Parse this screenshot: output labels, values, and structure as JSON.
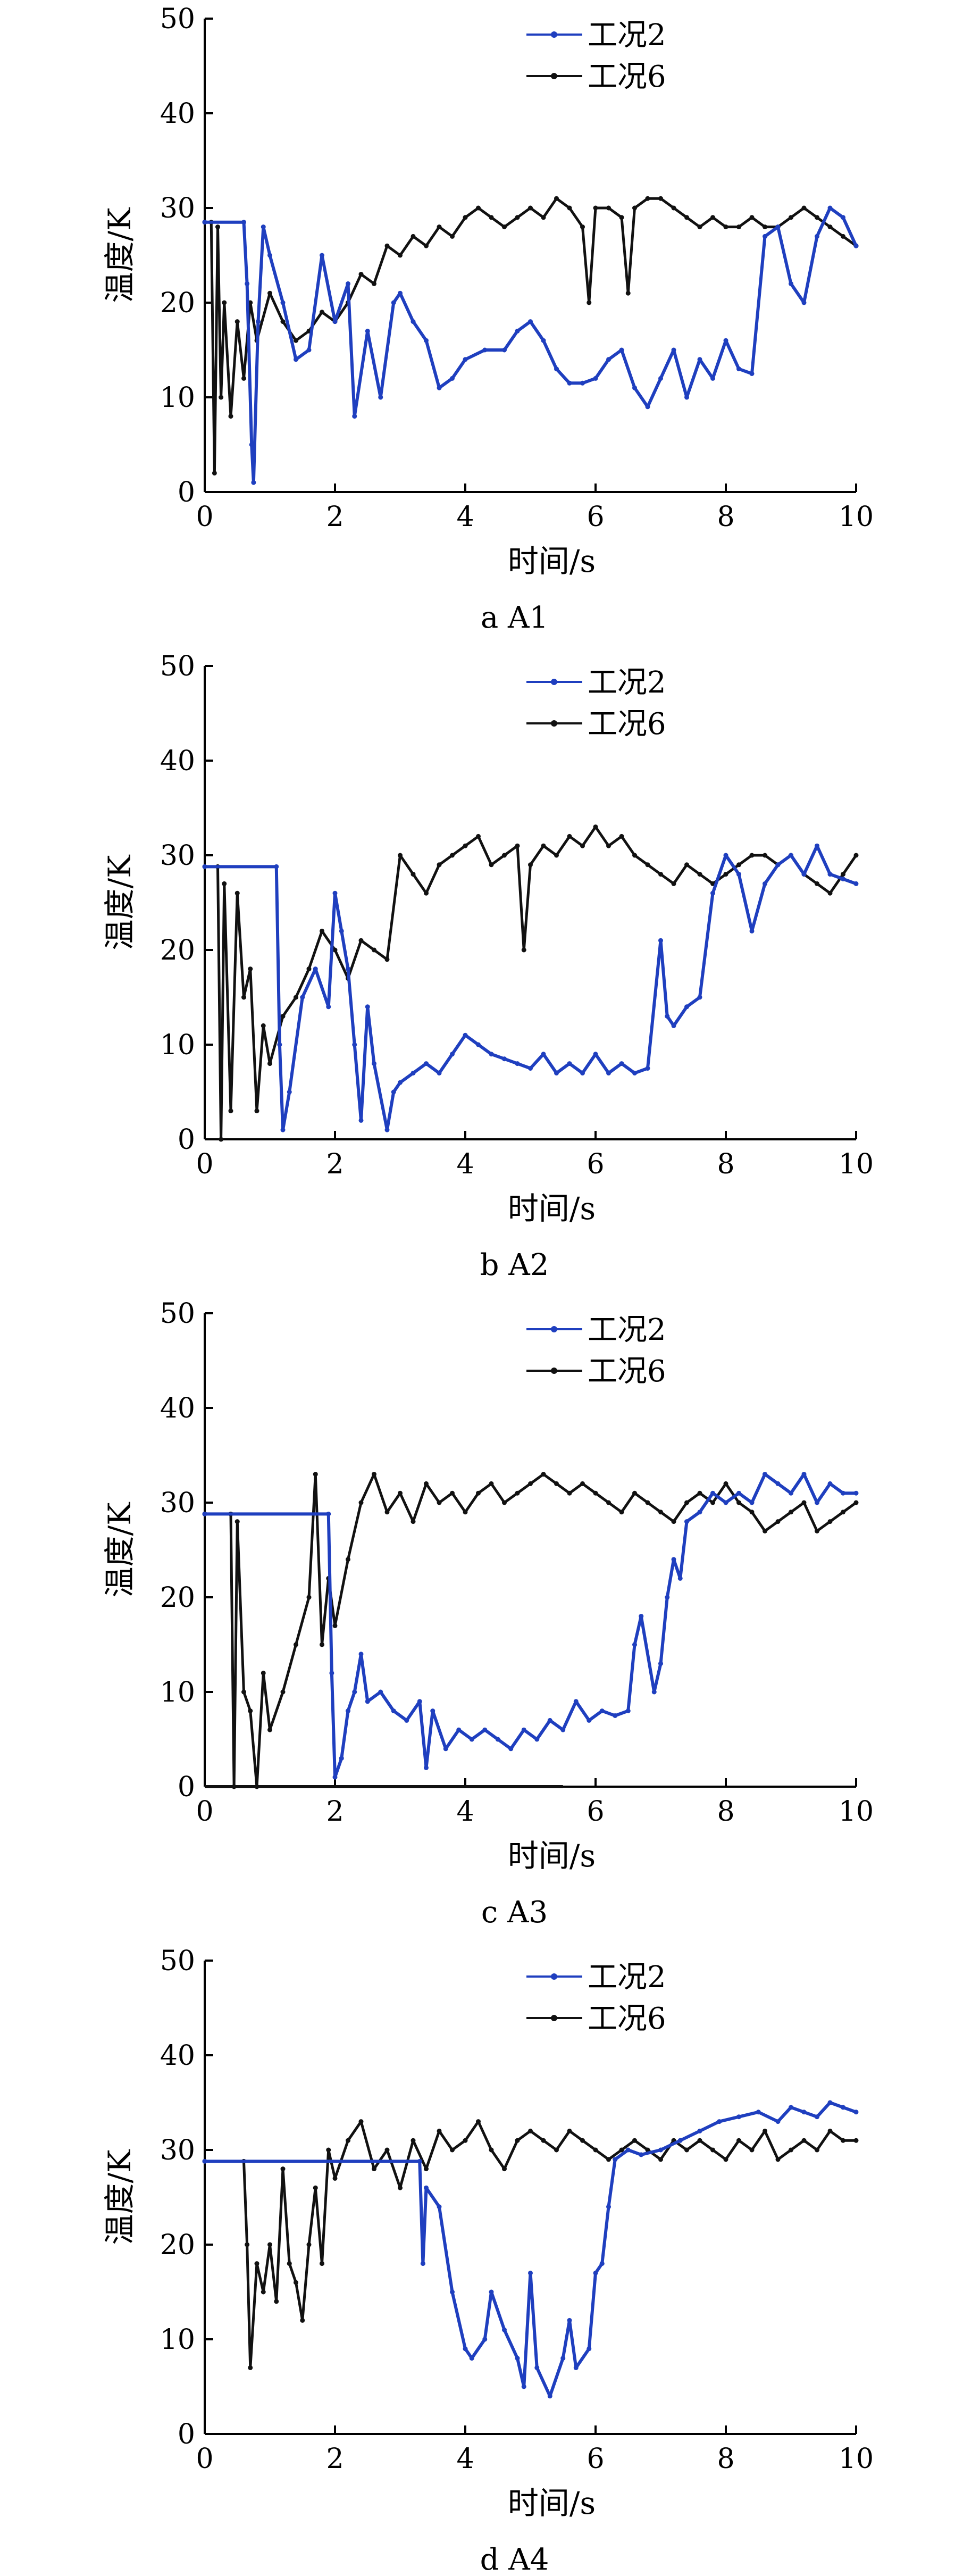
{
  "chart_data": [
    {
      "type": "line",
      "caption": "a  A1",
      "xlabel": "时间/s",
      "ylabel": "温度/K",
      "xlim": [
        0,
        10
      ],
      "ylim": [
        0,
        50
      ],
      "xticks": [
        "0",
        "2",
        "4",
        "6",
        "8",
        "10"
      ],
      "yticks": [
        "0",
        "10",
        "20",
        "30",
        "40",
        "50"
      ],
      "legend_position": "top-center",
      "series": [
        {
          "name": "工况2",
          "color": "#1f3fbf",
          "x": [
            0,
            0.6,
            0.65,
            0.72,
            0.75,
            0.82,
            0.9,
            1.0,
            1.2,
            1.4,
            1.6,
            1.8,
            2.0,
            2.2,
            2.3,
            2.5,
            2.7,
            2.9,
            3.0,
            3.2,
            3.4,
            3.6,
            3.8,
            4.0,
            4.3,
            4.6,
            4.8,
            5.0,
            5.2,
            5.4,
            5.6,
            5.8,
            6.0,
            6.2,
            6.4,
            6.6,
            6.8,
            7.0,
            7.2,
            7.4,
            7.6,
            7.8,
            8.0,
            8.2,
            8.4,
            8.6,
            8.8,
            9.0,
            9.2,
            9.4,
            9.6,
            9.8,
            10.0
          ],
          "y": [
            28.5,
            28.5,
            22,
            5,
            1,
            18,
            28,
            25,
            20,
            14,
            15,
            25,
            18,
            22,
            8,
            17,
            10,
            20,
            21,
            18,
            16,
            11,
            12,
            14,
            15,
            15,
            17,
            18,
            16,
            13,
            11.5,
            11.5,
            12,
            14,
            15,
            11,
            9,
            12,
            15,
            10,
            14,
            12,
            16,
            13,
            12.5,
            27,
            28,
            22,
            20,
            27,
            30,
            29,
            26
          ]
        },
        {
          "name": "工况6",
          "color": "#111111",
          "x": [
            0,
            0.1,
            0.15,
            0.2,
            0.25,
            0.3,
            0.4,
            0.5,
            0.6,
            0.7,
            0.8,
            1.0,
            1.2,
            1.4,
            1.6,
            1.8,
            2.0,
            2.2,
            2.4,
            2.6,
            2.8,
            3.0,
            3.2,
            3.4,
            3.6,
            3.8,
            4.0,
            4.2,
            4.4,
            4.6,
            4.8,
            5.0,
            5.2,
            5.4,
            5.6,
            5.8,
            5.9,
            6.0,
            6.2,
            6.4,
            6.5,
            6.6,
            6.8,
            7.0,
            7.2,
            7.4,
            7.6,
            7.8,
            8.0,
            8.2,
            8.4,
            8.6,
            8.8,
            9.0,
            9.2,
            9.4,
            9.6,
            9.8,
            10.0
          ],
          "y": [
            28.5,
            28.5,
            2,
            28,
            10,
            20,
            8,
            18,
            12,
            20,
            16,
            21,
            18,
            16,
            17,
            19,
            18,
            20,
            23,
            22,
            26,
            25,
            27,
            26,
            28,
            27,
            29,
            30,
            29,
            28,
            29,
            30,
            29,
            31,
            30,
            28,
            20,
            30,
            30,
            29,
            21,
            30,
            31,
            31,
            30,
            29,
            28,
            29,
            28,
            28,
            29,
            28,
            28,
            29,
            30,
            29,
            28,
            27,
            26
          ]
        }
      ]
    },
    {
      "type": "line",
      "caption": "b  A2",
      "xlabel": "时间/s",
      "ylabel": "温度/K",
      "xlim": [
        0,
        10
      ],
      "ylim": [
        0,
        50
      ],
      "xticks": [
        "0",
        "2",
        "4",
        "6",
        "8",
        "10"
      ],
      "yticks": [
        "0",
        "10",
        "20",
        "30",
        "40",
        "50"
      ],
      "legend_position": "top-center",
      "series": [
        {
          "name": "工况2",
          "color": "#1f3fbf",
          "x": [
            0,
            1.1,
            1.15,
            1.2,
            1.3,
            1.5,
            1.7,
            1.9,
            2.0,
            2.1,
            2.2,
            2.3,
            2.4,
            2.5,
            2.6,
            2.8,
            2.9,
            3.0,
            3.2,
            3.4,
            3.6,
            3.8,
            4.0,
            4.2,
            4.4,
            4.6,
            4.8,
            5.0,
            5.2,
            5.4,
            5.6,
            5.8,
            6.0,
            6.2,
            6.4,
            6.6,
            6.8,
            7.0,
            7.1,
            7.2,
            7.4,
            7.6,
            7.8,
            8.0,
            8.2,
            8.4,
            8.6,
            8.8,
            9.0,
            9.2,
            9.4,
            9.6,
            9.8,
            10.0
          ],
          "y": [
            28.8,
            28.8,
            10,
            1,
            5,
            15,
            18,
            14,
            26,
            22,
            18,
            10,
            2,
            14,
            8,
            1,
            5,
            6,
            7,
            8,
            7,
            9,
            11,
            10,
            9,
            8.5,
            8,
            7.5,
            9,
            7,
            8,
            7,
            9,
            7,
            8,
            7,
            7.5,
            21,
            13,
            12,
            14,
            15,
            26,
            30,
            28,
            22,
            27,
            29,
            30,
            28,
            31,
            28,
            27.5,
            27
          ]
        },
        {
          "name": "工况6",
          "color": "#111111",
          "x": [
            0,
            0.2,
            0.25,
            0.3,
            0.4,
            0.5,
            0.6,
            0.7,
            0.8,
            0.9,
            1.0,
            1.2,
            1.4,
            1.6,
            1.8,
            2.0,
            2.2,
            2.4,
            2.6,
            2.8,
            3.0,
            3.2,
            3.4,
            3.6,
            3.8,
            4.0,
            4.2,
            4.4,
            4.6,
            4.8,
            4.9,
            5.0,
            5.2,
            5.4,
            5.6,
            5.8,
            6.0,
            6.2,
            6.4,
            6.6,
            6.8,
            7.0,
            7.2,
            7.4,
            7.6,
            7.8,
            8.0,
            8.2,
            8.4,
            8.6,
            8.8,
            9.0,
            9.2,
            9.4,
            9.6,
            9.8,
            10.0
          ],
          "y": [
            28.8,
            28.8,
            0,
            27,
            3,
            26,
            15,
            18,
            3,
            12,
            8,
            13,
            15,
            18,
            22,
            20,
            17,
            21,
            20,
            19,
            30,
            28,
            26,
            29,
            30,
            31,
            32,
            29,
            30,
            31,
            20,
            29,
            31,
            30,
            32,
            31,
            33,
            31,
            32,
            30,
            29,
            28,
            27,
            29,
            28,
            27,
            28,
            29,
            30,
            30,
            29,
            30,
            28,
            27,
            26,
            28,
            30
          ]
        }
      ]
    },
    {
      "type": "line",
      "caption": "c  A3",
      "xlabel": "时间/s",
      "ylabel": "温度/K",
      "xlim": [
        0,
        10
      ],
      "ylim": [
        0,
        50
      ],
      "xticks": [
        "0",
        "2",
        "4",
        "6",
        "8",
        "10"
      ],
      "yticks": [
        "0",
        "10",
        "20",
        "30",
        "40",
        "50"
      ],
      "legend_position": "top-center",
      "series": [
        {
          "name": "工况2",
          "color": "#1f3fbf",
          "x": [
            0,
            1.9,
            1.95,
            2.0,
            2.1,
            2.2,
            2.3,
            2.4,
            2.5,
            2.7,
            2.9,
            3.1,
            3.3,
            3.4,
            3.5,
            3.7,
            3.9,
            4.1,
            4.3,
            4.5,
            4.7,
            4.9,
            5.1,
            5.3,
            5.5,
            5.7,
            5.9,
            6.1,
            6.3,
            6.5,
            6.6,
            6.7,
            6.9,
            7.0,
            7.1,
            7.2,
            7.3,
            7.4,
            7.6,
            7.8,
            8.0,
            8.2,
            8.4,
            8.6,
            8.8,
            9.0,
            9.2,
            9.4,
            9.6,
            9.8,
            10.0
          ],
          "y": [
            28.8,
            28.8,
            12,
            1,
            3,
            8,
            10,
            14,
            9,
            10,
            8,
            7,
            9,
            2,
            8,
            4,
            6,
            5,
            6,
            5,
            4,
            6,
            5,
            7,
            6,
            9,
            7,
            8,
            7.5,
            8,
            15,
            18,
            10,
            13,
            20,
            24,
            22,
            28,
            29,
            31,
            30,
            31,
            30,
            33,
            32,
            31,
            33,
            30,
            32,
            31,
            31
          ]
        },
        {
          "name": "工况6",
          "color": "#111111",
          "x": [
            0,
            0.4,
            0.45,
            0.5,
            0.6,
            0.7,
            0.8,
            0.9,
            1.0,
            1.2,
            1.4,
            1.6,
            1.7,
            1.8,
            1.9,
            2.0,
            2.2,
            2.4,
            2.6,
            2.8,
            3.0,
            3.2,
            3.4,
            3.6,
            3.8,
            4.0,
            4.2,
            4.4,
            4.6,
            4.8,
            5.0,
            5.2,
            5.4,
            5.6,
            5.8,
            6.0,
            6.2,
            6.4,
            6.6,
            6.8,
            7.0,
            7.2,
            7.4,
            7.6,
            7.8,
            8.0,
            8.2,
            8.4,
            8.6,
            8.8,
            9.0,
            9.2,
            9.4,
            9.6,
            9.8,
            10.0
          ],
          "y": [
            28.8,
            28.8,
            0,
            28,
            10,
            8,
            0,
            12,
            6,
            10,
            15,
            20,
            33,
            15,
            22,
            17,
            24,
            30,
            33,
            29,
            31,
            28,
            32,
            30,
            31,
            29,
            31,
            32,
            30,
            31,
            32,
            33,
            32,
            31,
            32,
            31,
            30,
            29,
            31,
            30,
            29,
            28,
            30,
            31,
            30,
            32,
            30,
            29,
            27,
            28,
            29,
            30,
            27,
            28,
            29,
            30
          ]
        }
      ],
      "extra_lines": [
        {
          "color": "#111111",
          "x": [
            0,
            5.5
          ],
          "y": [
            0,
            0
          ]
        }
      ]
    },
    {
      "type": "line",
      "caption": "d  A4",
      "xlabel": "时间/s",
      "ylabel": "温度/K",
      "xlim": [
        0,
        10
      ],
      "ylim": [
        0,
        50
      ],
      "xticks": [
        "0",
        "2",
        "4",
        "6",
        "8",
        "10"
      ],
      "yticks": [
        "0",
        "10",
        "20",
        "30",
        "40",
        "50"
      ],
      "legend_position": "top-center",
      "series": [
        {
          "name": "工况2",
          "color": "#1f3fbf",
          "x": [
            0,
            3.3,
            3.35,
            3.4,
            3.6,
            3.8,
            4.0,
            4.1,
            4.3,
            4.4,
            4.6,
            4.8,
            4.9,
            5.0,
            5.1,
            5.3,
            5.5,
            5.6,
            5.7,
            5.9,
            6.0,
            6.1,
            6.2,
            6.3,
            6.5,
            6.7,
            7.0,
            7.3,
            7.6,
            7.9,
            8.2,
            8.5,
            8.8,
            9.0,
            9.2,
            9.4,
            9.6,
            9.8,
            10.0
          ],
          "y": [
            28.8,
            28.8,
            18,
            26,
            24,
            15,
            9,
            8,
            10,
            15,
            11,
            8,
            5,
            17,
            7,
            4,
            8,
            12,
            7,
            9,
            17,
            18,
            24,
            29,
            30,
            29.5,
            30,
            31,
            32,
            33,
            33.5,
            34,
            33,
            34.5,
            34,
            33.5,
            35,
            34.5,
            34
          ]
        },
        {
          "name": "工况6",
          "color": "#111111",
          "x": [
            0,
            0.6,
            0.65,
            0.7,
            0.8,
            0.9,
            1.0,
            1.1,
            1.2,
            1.3,
            1.4,
            1.5,
            1.6,
            1.7,
            1.8,
            1.9,
            2.0,
            2.2,
            2.4,
            2.6,
            2.8,
            3.0,
            3.2,
            3.4,
            3.6,
            3.8,
            4.0,
            4.2,
            4.4,
            4.6,
            4.8,
            5.0,
            5.2,
            5.4,
            5.6,
            5.8,
            6.0,
            6.2,
            6.4,
            6.6,
            6.8,
            7.0,
            7.2,
            7.4,
            7.6,
            7.8,
            8.0,
            8.2,
            8.4,
            8.6,
            8.8,
            9.0,
            9.2,
            9.4,
            9.6,
            9.8,
            10.0
          ],
          "y": [
            28.8,
            28.8,
            20,
            7,
            18,
            15,
            20,
            14,
            28,
            18,
            16,
            12,
            20,
            26,
            18,
            30,
            27,
            31,
            33,
            28,
            30,
            26,
            31,
            28,
            32,
            30,
            31,
            33,
            30,
            28,
            31,
            32,
            31,
            30,
            32,
            31,
            30,
            29,
            30,
            31,
            30,
            29,
            31,
            30,
            31,
            30,
            29,
            31,
            30,
            32,
            29,
            30,
            31,
            30,
            32,
            31,
            31
          ]
        }
      ]
    }
  ]
}
